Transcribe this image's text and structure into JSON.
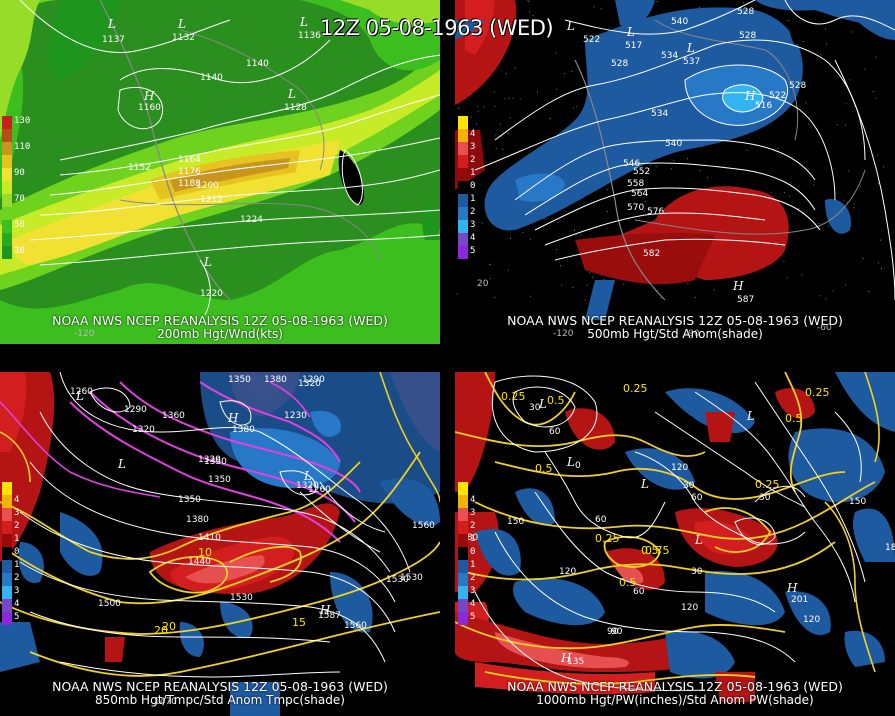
{
  "title": "12Z 05-08-1963 (WED)",
  "panels": {
    "p200": {
      "line1": "NOAA NWS NCEP REANALYSIS 12Z 05-08-1963 (WED)",
      "line2": "200mb Hgt/Wnd(kts)",
      "legend": [
        {
          "label": "130",
          "color": "#c81e1e"
        },
        {
          "label": "",
          "color": "#b45014"
        },
        {
          "label": "110",
          "color": "#c8961e"
        },
        {
          "label": "",
          "color": "#e6c31e"
        },
        {
          "label": "90",
          "color": "#f0e132"
        },
        {
          "label": "",
          "color": "#c8eb28"
        },
        {
          "label": "70",
          "color": "#96dc28"
        },
        {
          "label": "",
          "color": "#6ed21e"
        },
        {
          "label": "50",
          "color": "#3cbe1e"
        },
        {
          "label": "",
          "color": "#28aa1e"
        },
        {
          "label": "30",
          "color": "#1e961e"
        }
      ],
      "contour_labels": [
        "1137",
        "1132",
        "1136",
        "1140",
        "1140",
        "1128",
        "1160",
        "1152",
        "1164",
        "1176",
        "1188",
        "1200",
        "1212",
        "1224",
        "1220"
      ],
      "highs_lows": [
        "L",
        "L",
        "L",
        "H",
        "L",
        "L"
      ],
      "axis": [
        "-120"
      ]
    },
    "p500": {
      "line1": "NOAA NWS NCEP REANALYSIS 12Z 05-08-1963 (WED)",
      "line2": "500mb Hgt/Std Anom(shade)",
      "legend": [
        {
          "label": "",
          "color": "#ffe400"
        },
        {
          "label": "4",
          "color": "#f0b400"
        },
        {
          "label": "3",
          "color": "#e65050"
        },
        {
          "label": "2",
          "color": "#d21e1e"
        },
        {
          "label": "1",
          "color": "#960a0a"
        },
        {
          "label": "0",
          "color": "#000000"
        },
        {
          "label": "1",
          "color": "#1e5aa0"
        },
        {
          "label": "2",
          "color": "#2878c8"
        },
        {
          "label": "3",
          "color": "#32b4f0"
        },
        {
          "label": "4",
          "color": "#7846c8"
        },
        {
          "label": "5",
          "color": "#8c28dc"
        }
      ],
      "contour_labels": [
        "522",
        "528",
        "540",
        "528",
        "528",
        "517",
        "534",
        "537",
        "534",
        "522",
        "528",
        "516",
        "540",
        "546",
        "552",
        "558",
        "564",
        "570",
        "576",
        "582",
        "587"
      ],
      "highs_lows": [
        "L",
        "L",
        "L",
        "H",
        "H"
      ],
      "axis": [
        "-120",
        "-90",
        "-60",
        "20"
      ]
    },
    "p850": {
      "line1": "NOAA NWS NCEP REANALYSIS 12Z 05-08-1963 (WED)",
      "line2": "850mb Hgt/Tmpc/Std Anom Tmpc(shade)",
      "contour_labels": [
        "1350",
        "1380",
        "1290",
        "1320",
        "1260",
        "1290",
        "1320",
        "1360",
        "1380",
        "1230",
        "1320",
        "1350",
        "1350",
        "1260",
        "1320",
        "1350",
        "1380",
        "1410",
        "1440",
        "1470",
        "1500",
        "1530",
        "1560",
        "1560",
        "1530",
        "1530",
        "1587"
      ],
      "temp_labels": [
        "10",
        "15",
        "20",
        "20"
      ],
      "highs_lows": [
        "L",
        "L",
        "H",
        "L",
        "H"
      ]
    },
    "p1000": {
      "line1": "NOAA NWS NCEP REANALYSIS 12Z 05-08-1963 (WED)",
      "line2": "1000mb Hgt/PW(inches)/Std Anom PW(shade)",
      "contour_labels": [
        "30",
        "60",
        "0",
        "30",
        "120",
        "60",
        "30",
        "150",
        "180",
        "120",
        "60",
        "90",
        "120",
        "30",
        "60",
        "150",
        "180",
        "120",
        "90",
        "135",
        "201"
      ],
      "pw_labels": [
        "0.25",
        "0.5",
        "0.25",
        "0.5",
        "0.25",
        "0.5",
        "0.25",
        "0.25",
        "0.5",
        "0.75",
        "0.5"
      ],
      "highs_lows": [
        "L",
        "L",
        "L",
        "L",
        "L",
        "H",
        "H"
      ]
    }
  }
}
